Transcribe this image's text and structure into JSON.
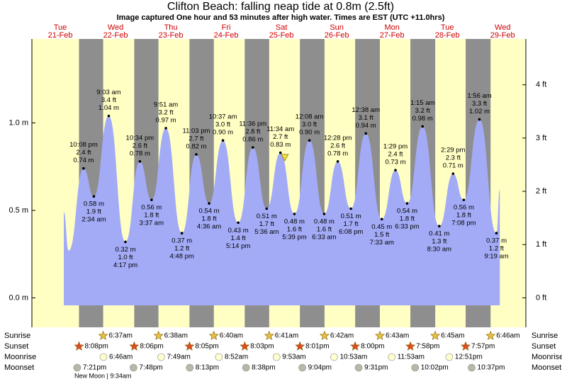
{
  "chart_data": {
    "type": "area",
    "title": "Clifton Beach: falling  neap tide at 0.8m (2.5ft)",
    "subtitle": "Image captured One hour and 53 minutes after high water. Times are EST (UTC +11.0hrs)",
    "days": [
      {
        "weekday": "Tue",
        "date": "21-Feb"
      },
      {
        "weekday": "Wed",
        "date": "22-Feb"
      },
      {
        "weekday": "Thu",
        "date": "23-Feb"
      },
      {
        "weekday": "Fri",
        "date": "24-Feb"
      },
      {
        "weekday": "Sat",
        "date": "25-Feb"
      },
      {
        "weekday": "Sun",
        "date": "26-Feb"
      },
      {
        "weekday": "Mon",
        "date": "27-Feb"
      },
      {
        "weekday": "Tue",
        "date": "28-Feb"
      },
      {
        "weekday": "Wed",
        "date": "29-Feb"
      }
    ],
    "xlim": [
      0,
      8.92
    ],
    "ylim": [
      -0.14,
      1.48
    ],
    "yticks": [
      {
        "value": 0,
        "label": "0.0 m"
      },
      {
        "value": 0.5,
        "label": "0.5 m"
      },
      {
        "value": 1,
        "label": "1.0 m"
      }
    ],
    "y2lim": [
      -0.46,
      4.86
    ],
    "y2ticks": [
      {
        "value": 0,
        "label": "0 ft"
      },
      {
        "value": 1,
        "label": "1 ft"
      },
      {
        "value": 2,
        "label": "2 ft"
      },
      {
        "value": 3,
        "label": "3 ft"
      },
      {
        "value": 4,
        "label": "4 ft"
      }
    ],
    "color": "#a3abf7",
    "x": [
      0.564,
      0.654,
      0.922,
      1.107,
      1.377,
      1.679,
      1.94,
      2.151,
      2.41,
      2.7,
      2.96,
      3.192,
      3.442,
      3.718,
      3.983,
      4.233,
      4.482,
      4.735,
      5.006,
      5.273,
      5.519,
      5.756,
      6.026,
      6.315,
      6.562,
      6.773,
      7.052,
      7.354,
      7.604,
      7.797,
      8.081,
      8.388,
      8.449
    ],
    "values": [
      0.49,
      0.27,
      0.74,
      0.58,
      1.04,
      0.32,
      0.78,
      0.56,
      0.97,
      0.37,
      0.82,
      0.54,
      0.9,
      0.43,
      0.86,
      0.51,
      0.83,
      0.48,
      0.9,
      0.48,
      0.78,
      0.51,
      0.94,
      0.45,
      0.73,
      0.54,
      0.98,
      0.41,
      0.71,
      0.56,
      1.02,
      0.37,
      0.62
    ],
    "value_labels": [
      null,
      null,
      "0.74 m",
      "0.58 m",
      "1.04 m",
      "0.32 m",
      "0.78 m",
      "0.56 m",
      "0.97 m",
      "0.37 m",
      "0.82 m",
      "0.54 m",
      "0.90 m",
      "0.43 m",
      "0.86 m",
      "0.51 m",
      "0.83 m",
      "0.48 m",
      "0.90 m",
      "0.48 m",
      "0.78 m",
      "0.51 m",
      "0.94 m",
      "0.45 m",
      "0.73 m",
      "0.54 m",
      "0.98 m",
      "0.41 m",
      "0.71 m",
      "0.56 m",
      "1.02 m",
      "0.37 m",
      null
    ],
    "ft_labels": [
      null,
      null,
      "2.4 ft",
      "1.9 ft",
      "3.4 ft",
      "1.0 ft",
      "2.6 ft",
      "1.8 ft",
      "3.2 ft",
      "1.2 ft",
      "2.7 ft",
      "1.8 ft",
      "3.0 ft",
      "1.4 ft",
      "2.8 ft",
      "1.7 ft",
      "2.7 ft",
      "1.6 ft",
      "3.0 ft",
      "1.6 ft",
      "2.6 ft",
      "1.7 ft",
      "3.1 ft",
      "1.5 ft",
      "2.4 ft",
      "1.8 ft",
      "3.2 ft",
      "1.3 ft",
      "2.3 ft",
      "1.8 ft",
      "3.3 ft",
      "1.2 ft",
      null
    ],
    "time_labels": [
      null,
      null,
      "10:08 pm",
      "2:34 am",
      "9:03 am",
      "4:17 pm",
      "10:34 pm",
      "3:37 am",
      "9:51 am",
      "4:48 pm",
      "11:03 pm",
      "4:36 am",
      "10:37 am",
      "5:14 pm",
      "11:36 pm",
      "5:36 am",
      "11:34 am",
      "5:39 pm",
      "12:08 am",
      "6:33 am",
      "12:28 pm",
      "6:08 pm",
      "12:38 am",
      "7:33 am",
      "1:29 pm",
      "6:33 pm",
      "1:15 am",
      "8:30 am",
      "2:29 pm",
      "7:08 pm",
      "1:56 am",
      "9:19 am",
      null
    ],
    "now": {
      "x": 4.56,
      "value": 0.8
    },
    "events": [
      {
        "label": "Sunrise",
        "x": [
          1.276,
          2.276,
          3.278,
          4.278,
          5.279,
          6.28,
          7.281,
          8.282
        ],
        "times": [
          "6:37am",
          "6:38am",
          "6:40am",
          "6:41am",
          "6:42am",
          "6:43am",
          "6:45am",
          "6:46am"
        ]
      },
      {
        "label": "Sunset",
        "x": [
          0.839,
          1.838,
          2.837,
          3.836,
          4.834,
          5.833,
          6.832,
          7.831
        ],
        "times": [
          "8:08pm",
          "8:06pm",
          "8:05pm",
          "8:03pm",
          "8:01pm",
          "8:00pm",
          "7:58pm",
          "7:57pm"
        ]
      },
      {
        "label": "Moonrise",
        "x": [
          1.282,
          2.326,
          3.369,
          4.412,
          5.453,
          6.495,
          7.535
        ],
        "times": [
          "6:46am",
          "7:49am",
          "8:52am",
          "9:53am",
          "10:53am",
          "11:53am",
          "12:51pm"
        ]
      },
      {
        "label": "Moonset",
        "x": [
          0.806,
          1.825,
          2.842,
          3.86,
          4.878,
          5.897,
          6.918,
          7.94
        ],
        "times": [
          "7:21pm",
          "7:48pm",
          "8:13pm",
          "8:38pm",
          "9:04pm",
          "9:31pm",
          "10:02pm",
          "10:37pm"
        ]
      }
    ],
    "note": "New Moon | 9:34am"
  }
}
